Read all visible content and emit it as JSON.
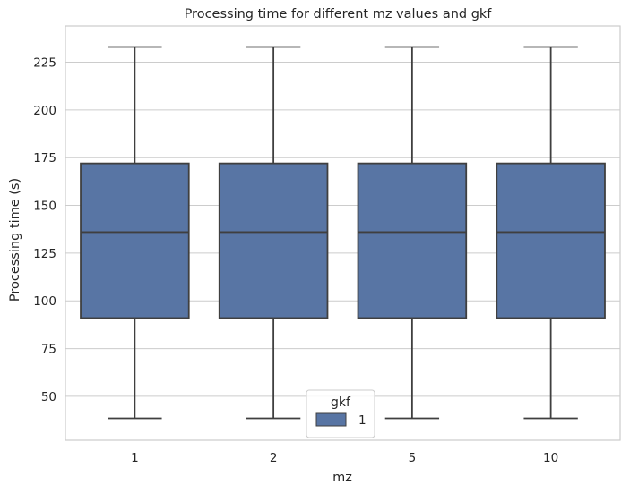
{
  "chart_data": {
    "type": "box",
    "title": "Processing time for different mz values and gkf",
    "xlabel": "mz",
    "ylabel": "Processing time (s)",
    "categories": [
      "1",
      "2",
      "5",
      "10"
    ],
    "yticks": [
      50,
      75,
      100,
      125,
      150,
      175,
      200,
      225
    ],
    "ylim": [
      27,
      244
    ],
    "grid": true,
    "legend": {
      "title": "gkf",
      "placement": "lower-center",
      "entries": [
        {
          "label": "1",
          "color": "#5875a4"
        }
      ]
    },
    "series": [
      {
        "name": "1",
        "color": "#5875a4",
        "boxes": [
          {
            "category": "1",
            "whisker_low": 38.5,
            "q1": 91,
            "median": 136,
            "q3": 172,
            "whisker_high": 233
          },
          {
            "category": "2",
            "whisker_low": 38.5,
            "q1": 91,
            "median": 136,
            "q3": 172,
            "whisker_high": 233
          },
          {
            "category": "5",
            "whisker_low": 38.5,
            "q1": 91,
            "median": 136,
            "q3": 172,
            "whisker_high": 233
          },
          {
            "category": "10",
            "whisker_low": 38.5,
            "q1": 91,
            "median": 136,
            "q3": 172,
            "whisker_high": 233
          }
        ]
      }
    ]
  }
}
